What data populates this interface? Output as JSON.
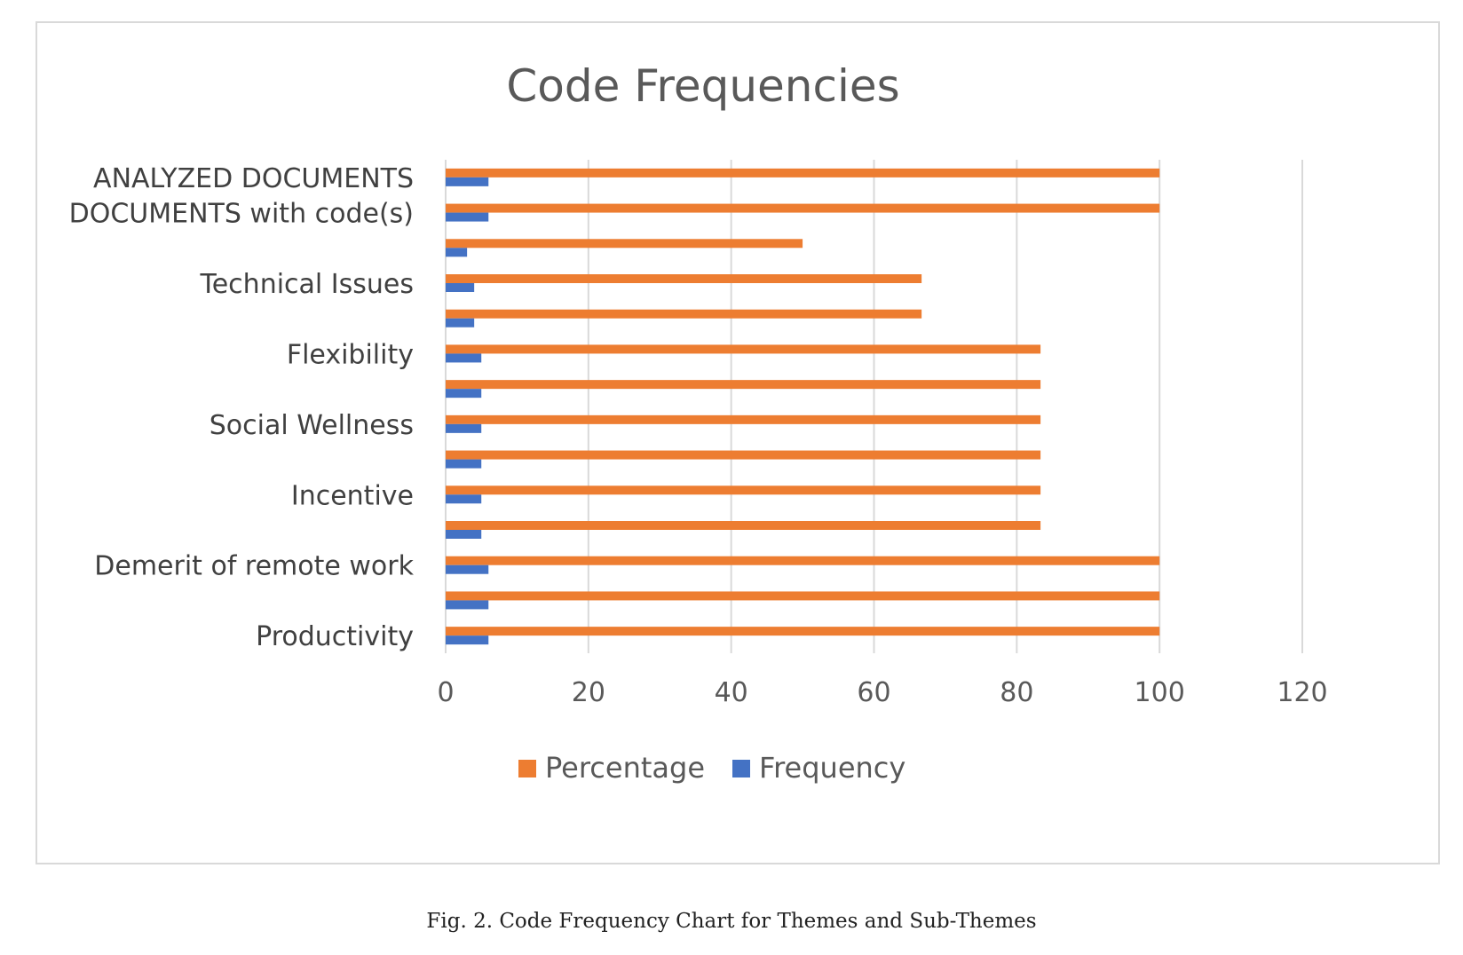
{
  "chart_data": {
    "type": "bar",
    "orientation": "horizontal",
    "title": "Code Frequencies",
    "categories": [
      "ANALYZED DOCUMENTS",
      "DOCUMENTS with code(s)",
      "",
      "Technical Issues",
      "",
      "Flexibility",
      "",
      "Social Wellness",
      "",
      "Incentive",
      "",
      "Demerit of remote work",
      "",
      "Productivity"
    ],
    "series": [
      {
        "name": "Percentage",
        "color": "#ed7d31",
        "values": [
          100,
          100,
          50,
          66.67,
          66.67,
          83.33,
          83.33,
          83.33,
          83.33,
          83.33,
          83.33,
          100,
          100,
          100
        ]
      },
      {
        "name": "Frequency",
        "color": "#4472c4",
        "values": [
          6,
          6,
          3,
          4,
          4,
          5,
          5,
          5,
          5,
          5,
          5,
          6,
          6,
          6
        ]
      }
    ],
    "xlim": [
      0,
      120
    ],
    "xticks": [
      0,
      20,
      40,
      60,
      80,
      100,
      120
    ],
    "grid": true,
    "legend_position": "bottom"
  },
  "caption": "Fig. 2.  Code Frequency Chart for Themes and Sub-Themes"
}
